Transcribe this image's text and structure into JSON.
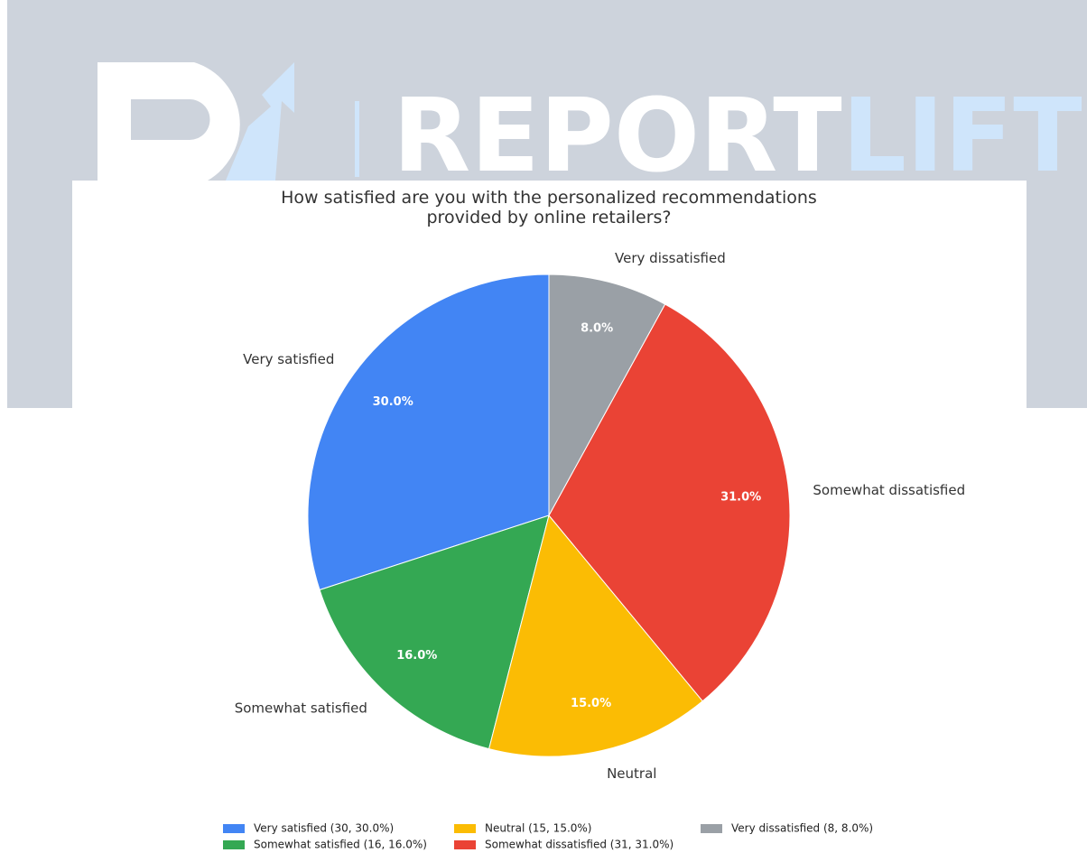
{
  "logo": {
    "text": "REPORT",
    "accent": "LIFT"
  },
  "chart_data": {
    "type": "pie",
    "title": "How satisfied are you with the personalized recommendations\nprovided by online retailers?",
    "categories": [
      "Very satisfied",
      "Somewhat satisfied",
      "Neutral",
      "Somewhat dissatisfied",
      "Very dissatisfied"
    ],
    "values": [
      30,
      16,
      15,
      31,
      8
    ],
    "value_labels": [
      "30.0%",
      "16.0%",
      "15.0%",
      "31.0%",
      "8.0%"
    ],
    "colors": [
      "#4285f4",
      "#34a853",
      "#fbbc04",
      "#ea4335",
      "#9aa0a6"
    ],
    "legend_labels": [
      "Very satisfied (30, 30.0%)",
      "Somewhat satisfied (16, 16.0%)",
      "Neutral (15, 15.0%)",
      "Somewhat dissatisfied (31, 31.0%)",
      "Very dissatisfied (8, 8.0%)"
    ],
    "legend": "bottom"
  }
}
